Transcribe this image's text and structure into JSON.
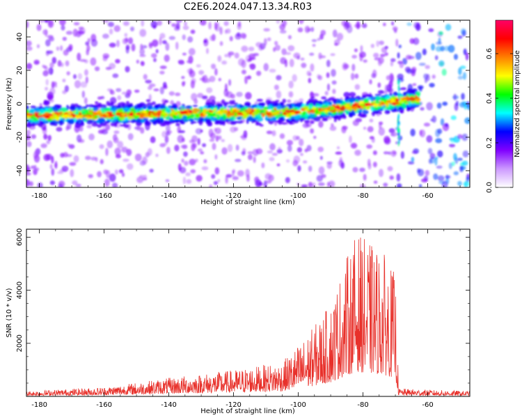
{
  "figure": {
    "title": "C2E6.2024.047.13.34.R03"
  },
  "chart_data": [
    {
      "type": "heatmap",
      "xlabel": "Height of straight line (km)",
      "ylabel": "Frequency (Hz)",
      "xlim": [
        -184,
        -47
      ],
      "ylim": [
        -50,
        50
      ],
      "xticks": [
        -180,
        -160,
        -140,
        -120,
        -100,
        -80,
        -60
      ],
      "yticks": [
        -40,
        -20,
        0,
        20,
        40
      ],
      "colorbar": {
        "label": "Normalized spectral amplitude",
        "range": [
          0,
          0.75
        ],
        "ticks": [
          0.0,
          0.2,
          0.4,
          0.6
        ],
        "colormap": [
          "#ffffff",
          "#cc99ff",
          "#8000ff",
          "#0000ff",
          "#00ffff",
          "#00ff00",
          "#ffff00",
          "#ff8000",
          "#ff0000",
          "#ff0066"
        ]
      },
      "band": {
        "description_points": [
          {
            "x": -184,
            "center": -7
          },
          {
            "x": -140,
            "center": -6
          },
          {
            "x": -100,
            "center": -5
          },
          {
            "x": -80,
            "center": -1
          },
          {
            "x": -63,
            "center": 3
          }
        ],
        "peak_amplitude": 0.7
      }
    },
    {
      "type": "line",
      "xlabel": "Height of straight line (km)",
      "ylabel": "SNR (10 * v/v)",
      "xlim": [
        -184,
        -47
      ],
      "ylim": [
        0,
        6300
      ],
      "xticks": [
        -180,
        -160,
        -140,
        -120,
        -100,
        -80,
        -60
      ],
      "yticks": [
        2000,
        4000,
        6000
      ],
      "series": [
        {
          "color": "#e8302a",
          "envelope": [
            {
              "x": -184,
              "y": 200
            },
            {
              "x": -160,
              "y": 350
            },
            {
              "x": -140,
              "y": 700
            },
            {
              "x": -120,
              "y": 1000
            },
            {
              "x": -105,
              "y": 1300
            },
            {
              "x": -98,
              "y": 2200
            },
            {
              "x": -90,
              "y": 3500
            },
            {
              "x": -85,
              "y": 5300
            },
            {
              "x": -82,
              "y": 6200
            },
            {
              "x": -78,
              "y": 5800
            },
            {
              "x": -74,
              "y": 5500
            },
            {
              "x": -70,
              "y": 4600
            },
            {
              "x": -69,
              "y": 300
            },
            {
              "x": -60,
              "y": 250
            },
            {
              "x": -47,
              "y": 200
            }
          ]
        }
      ]
    }
  ]
}
